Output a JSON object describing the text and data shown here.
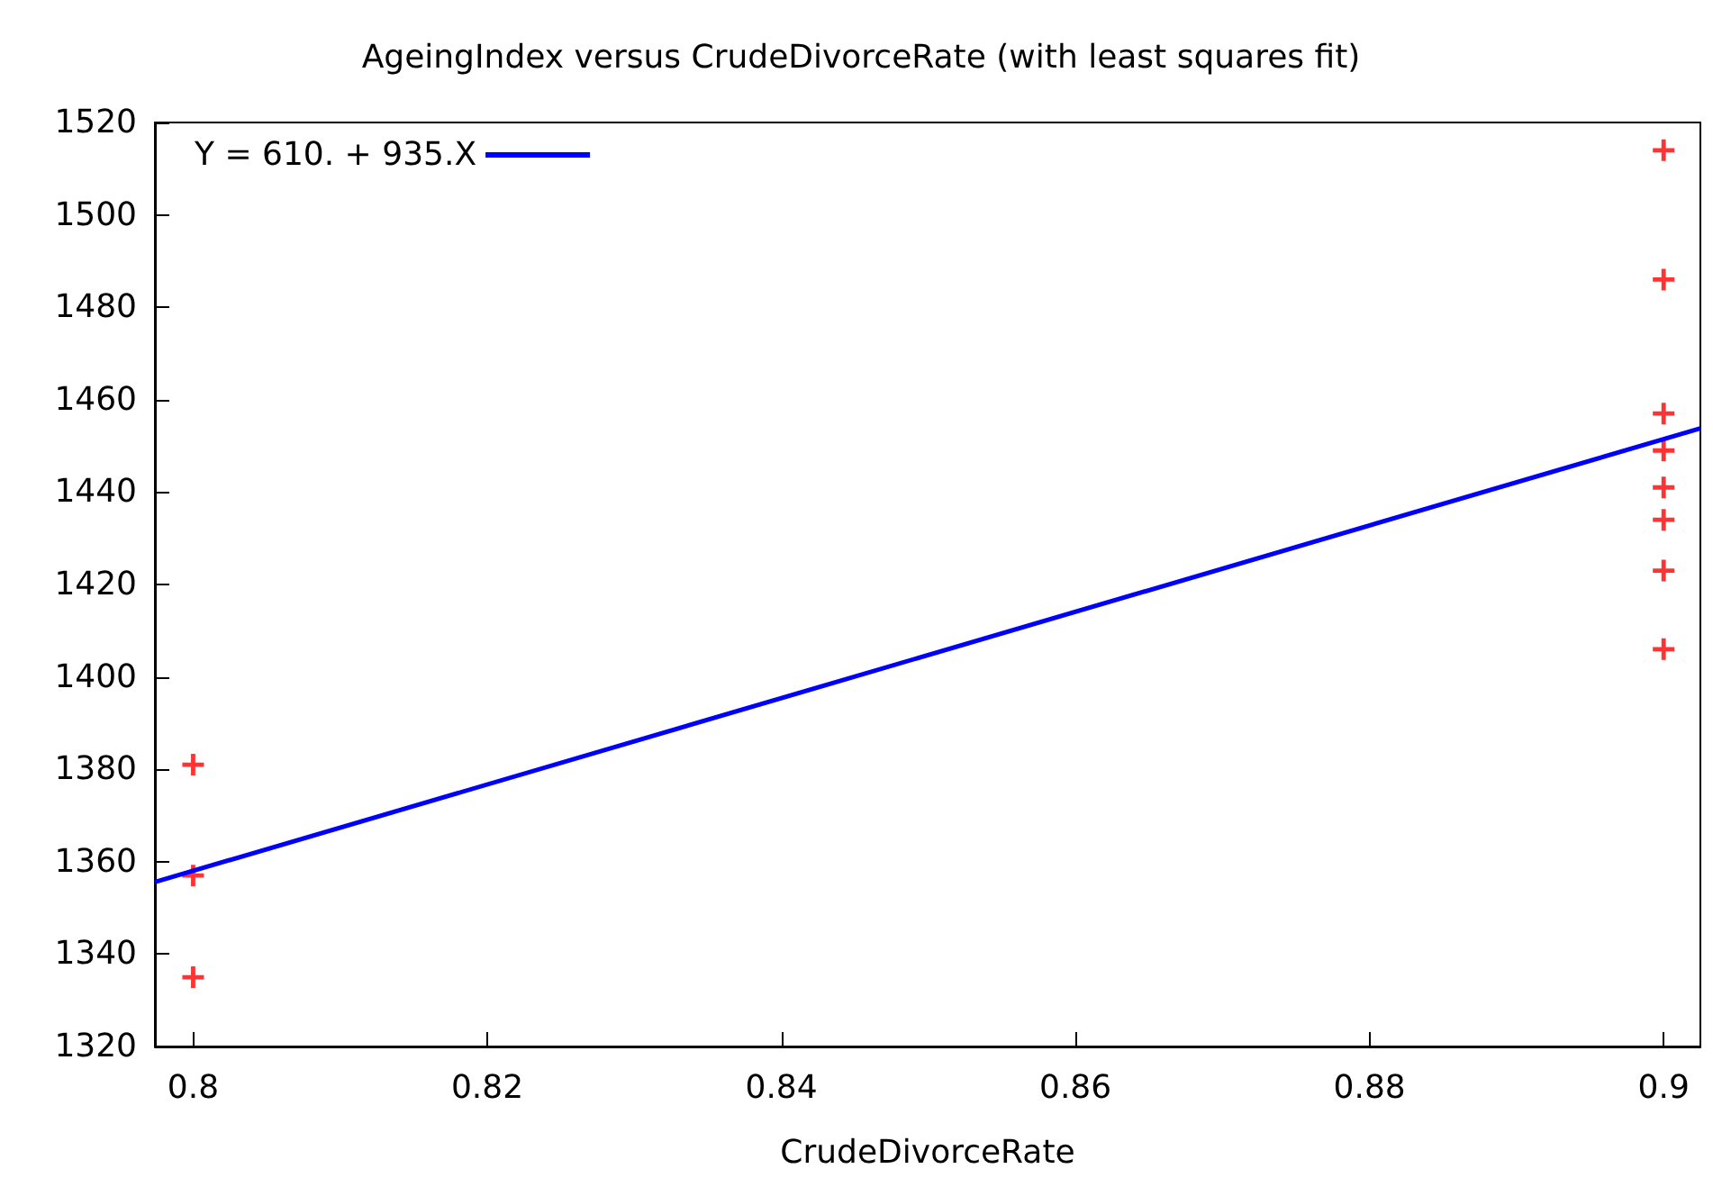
{
  "chart_data": {
    "type": "scatter",
    "title": "AgeingIndex versus CrudeDivorceRate (with least squares fit)",
    "xlabel": "CrudeDivorceRate",
    "series": [
      {
        "color": "#ff0000",
        "marker": "cross",
        "x": [
          0.8,
          0.8,
          0.8,
          0.9,
          0.9,
          0.9,
          0.9,
          0.9,
          0.9,
          0.9,
          0.9
        ],
        "values": [
          1381,
          1357,
          1335,
          1514,
          1486,
          1457,
          1449,
          1441,
          1434,
          1423,
          1406
        ]
      },
      {
        "type": "line",
        "name": "Y = 610. + 935.X",
        "color": "#0000ff",
        "x": [
          0.7974,
          0.9025
        ],
        "values": [
          1355.6,
          1453.8
        ]
      }
    ],
    "xlim": [
      0.7974,
      0.9025
    ],
    "xticks": [
      0.8,
      0.82,
      0.84,
      0.86,
      0.88,
      0.9
    ],
    "ylim": [
      1320,
      1520
    ],
    "yticks": [
      1320,
      1340,
      1360,
      1380,
      1400,
      1420,
      1440,
      1460,
      1480,
      1500,
      1520
    ],
    "grid": false,
    "legend": "top left"
  }
}
